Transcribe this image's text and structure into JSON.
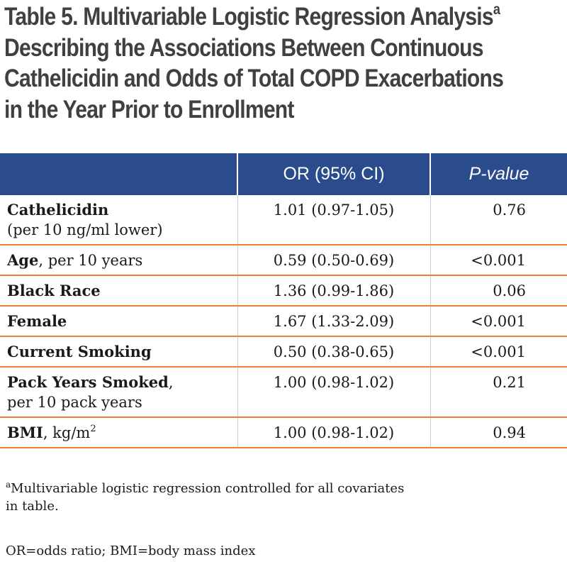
{
  "title": {
    "line1": "Table 5. Multivariable Logistic Regression Analysis",
    "line1_sup": "a",
    "line2": "Describing the Associations Between Continuous",
    "line3": "Cathelicidin and Odds of Total COPD Exacerbations",
    "line4": "in the Year Prior to Enrollment"
  },
  "table": {
    "headers": [
      "",
      "OR (95% CI)",
      "P-value"
    ],
    "rows": [
      {
        "label_bold": "Cathelicidin",
        "label_rest": "",
        "label_line2": "(per 10 ng/ml lower)",
        "or": "1.01 (0.97-1.05)",
        "p": "0.76"
      },
      {
        "label_bold": "Age",
        "label_rest": ", per 10 years",
        "or": "0.59 (0.50-0.69)",
        "p": "<0.001"
      },
      {
        "label_bold": "Black Race",
        "label_rest": "",
        "or": "1.36 (0.99-1.86)",
        "p": "0.06"
      },
      {
        "label_bold": "Female",
        "label_rest": "",
        "or": "1.67 (1.33-2.09)",
        "p": "<0.001"
      },
      {
        "label_bold": "Current Smoking",
        "label_rest": "",
        "or": "0.50 (0.38-0.65)",
        "p": "<0.001"
      },
      {
        "label_bold": "Pack Years Smoked",
        "label_rest": ",",
        "label_line2": "per 10 pack years",
        "or": "1.00 (0.98-1.02)",
        "p": "0.21"
      },
      {
        "label_bold": "BMI",
        "label_rest": ", kg/m",
        "label_sup": "2",
        "or": "1.00 (0.98-1.02)",
        "p": "0.94"
      }
    ]
  },
  "footnotes": {
    "a_marker": "a",
    "a_line1": "Multivariable logistic regression controlled for all covariates",
    "a_line2": "in table.",
    "abbrev": "OR=odds ratio; BMI=body mass index"
  },
  "colors": {
    "title_text": "#404040",
    "header_bg": "#2a4c8c",
    "row_rule": "#e8833a"
  }
}
